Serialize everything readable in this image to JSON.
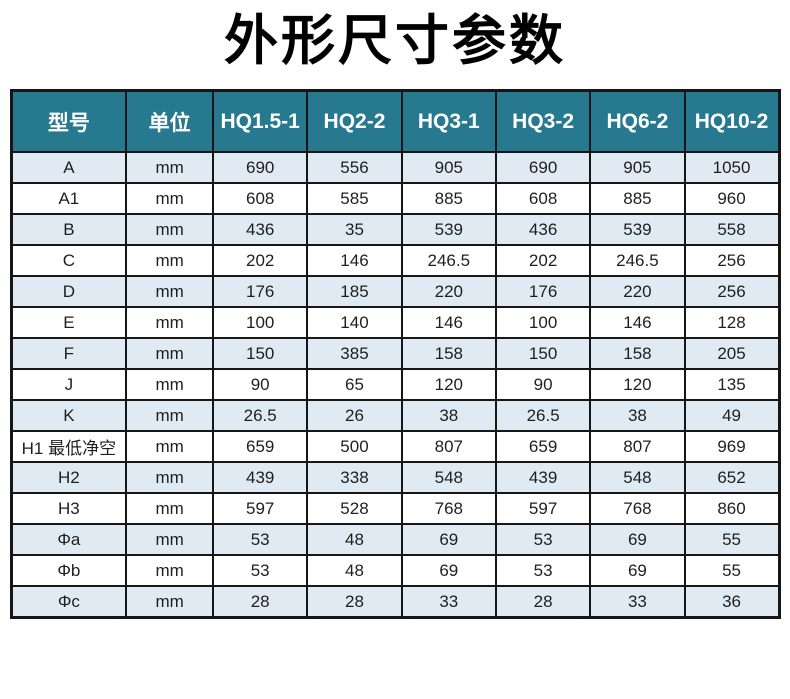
{
  "title": "外形尺寸参数",
  "chart_data": {
    "type": "table",
    "title": "外形尺寸参数",
    "columns": [
      "型号",
      "单位",
      "HQ1.5-1",
      "HQ2-2",
      "HQ3-1",
      "HQ3-2",
      "HQ6-2",
      "HQ10-2"
    ],
    "rows": [
      {
        "label": "A",
        "unit": "mm",
        "values": [
          "690",
          "556",
          "905",
          "690",
          "905",
          "1050"
        ]
      },
      {
        "label": "A1",
        "unit": "mm",
        "values": [
          "608",
          "585",
          "885",
          "608",
          "885",
          "960"
        ]
      },
      {
        "label": "B",
        "unit": "mm",
        "values": [
          "436",
          "35",
          "539",
          "436",
          "539",
          "558"
        ]
      },
      {
        "label": "C",
        "unit": "mm",
        "values": [
          "202",
          "146",
          "246.5",
          "202",
          "246.5",
          "256"
        ]
      },
      {
        "label": "D",
        "unit": "mm",
        "values": [
          "176",
          "185",
          "220",
          "176",
          "220",
          "256"
        ]
      },
      {
        "label": "E",
        "unit": "mm",
        "values": [
          "100",
          "140",
          "146",
          "100",
          "146",
          "128"
        ]
      },
      {
        "label": "F",
        "unit": "mm",
        "values": [
          "150",
          "385",
          "158",
          "150",
          "158",
          "205"
        ]
      },
      {
        "label": "J",
        "unit": "mm",
        "values": [
          "90",
          "65",
          "120",
          "90",
          "120",
          "135"
        ]
      },
      {
        "label": "K",
        "unit": "mm",
        "values": [
          "26.5",
          "26",
          "38",
          "26.5",
          "38",
          "49"
        ]
      },
      {
        "label": "H1 最低净空",
        "unit": "mm",
        "values": [
          "659",
          "500",
          "807",
          "659",
          "807",
          "969"
        ]
      },
      {
        "label": "H2",
        "unit": "mm",
        "values": [
          "439",
          "338",
          "548",
          "439",
          "548",
          "652"
        ]
      },
      {
        "label": "H3",
        "unit": "mm",
        "values": [
          "597",
          "528",
          "768",
          "597",
          "768",
          "860"
        ]
      },
      {
        "label": "Φa",
        "unit": "mm",
        "values": [
          "53",
          "48",
          "69",
          "53",
          "69",
          "55"
        ]
      },
      {
        "label": "Φb",
        "unit": "mm",
        "values": [
          "53",
          "48",
          "69",
          "53",
          "69",
          "55"
        ]
      },
      {
        "label": "Φc",
        "unit": "mm",
        "values": [
          "28",
          "28",
          "33",
          "28",
          "33",
          "36"
        ]
      }
    ]
  },
  "colors": {
    "header_bg": "#26798f",
    "header_text": "#ffffff",
    "row_alt_bg": "#dfeaf2",
    "row_bg": "#ffffff",
    "border": "#161616",
    "title_text": "#000000"
  }
}
